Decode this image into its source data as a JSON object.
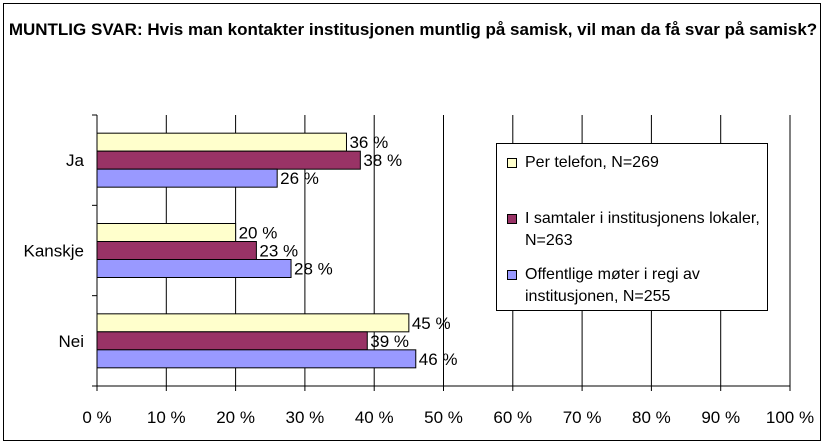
{
  "chart_data": {
    "type": "bar",
    "orientation": "horizontal",
    "title": "MUNTLIG SVAR: Hvis man kontakter institusjonen muntlig på samisk, vil man da få svar på samisk?",
    "categories": [
      "Ja",
      "Kanskje",
      "Nei"
    ],
    "series": [
      {
        "name": "Per telefon, N=269",
        "values": [
          36,
          20,
          45
        ],
        "labels": [
          "36 %",
          "20 %",
          "45 %"
        ],
        "color": "#ffffcc"
      },
      {
        "name": "I samtaler i institusjonens lokaler, N=263",
        "values": [
          38,
          23,
          39
        ],
        "labels": [
          "38 %",
          "23 %",
          "39 %"
        ],
        "color": "#993366"
      },
      {
        "name": "Offentlige møter i regi av institusjonen, N=255",
        "values": [
          26,
          28,
          46
        ],
        "labels": [
          "26 %",
          "28 %",
          "46 %"
        ],
        "color": "#9999ff"
      }
    ],
    "xlim": [
      0,
      100
    ],
    "xticks": [
      "0 %",
      "10 %",
      "20 %",
      "30 %",
      "40 %",
      "50 %",
      "60 %",
      "70 %",
      "80 %",
      "90 %",
      "100 %"
    ],
    "grid": true,
    "legend_position": "right"
  }
}
